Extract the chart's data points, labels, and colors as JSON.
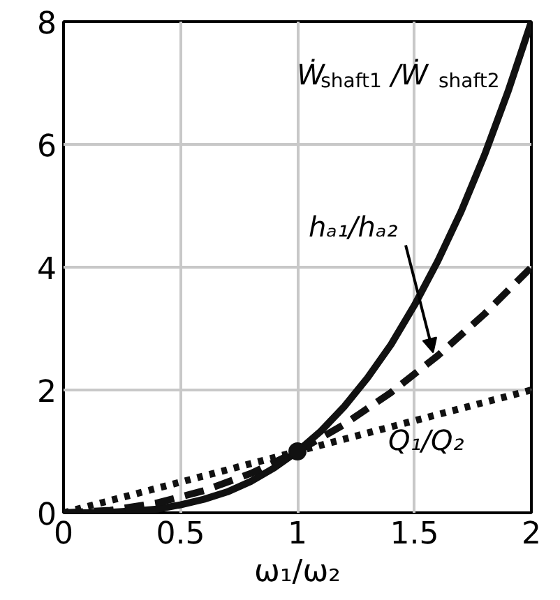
{
  "chart_data": {
    "type": "line",
    "xlabel": "ω₁/ω₂",
    "xlim": [
      0,
      2
    ],
    "ylim": [
      0,
      8
    ],
    "xticks": [
      0,
      0.5,
      1,
      1.5,
      2
    ],
    "yticks": [
      0,
      2,
      4,
      6,
      8
    ],
    "grid": true,
    "series": [
      {
        "name": "Ẇ$_{shaft1}$/Ẇ$_{shaft2}$",
        "color": "#111111",
        "line_style": "solid",
        "x": [
          0,
          0.1,
          0.2,
          0.3,
          0.4,
          0.5,
          0.6,
          0.7,
          0.8,
          0.9,
          1,
          1.1,
          1.2,
          1.3,
          1.4,
          1.5,
          1.6,
          1.7,
          1.8,
          1.9,
          2
        ],
        "values": [
          0,
          0,
          0.01,
          0.03,
          0.06,
          0.13,
          0.22,
          0.34,
          0.51,
          0.73,
          1,
          1.33,
          1.73,
          2.2,
          2.74,
          3.38,
          4.1,
          4.91,
          5.83,
          6.86,
          8
        ]
      },
      {
        "name": "hₐ₁/hₐ₂",
        "color": "#111111",
        "line_style": "dashed",
        "x": [
          0,
          0.2,
          0.4,
          0.6,
          0.8,
          1,
          1.2,
          1.4,
          1.6,
          1.8,
          2
        ],
        "values": [
          0,
          0.04,
          0.16,
          0.36,
          0.64,
          1,
          1.44,
          1.96,
          2.56,
          3.24,
          4
        ]
      },
      {
        "name": "Q₁/Q₂",
        "color": "#111111",
        "line_style": "dotted",
        "x": [
          0,
          2
        ],
        "values": [
          0,
          2
        ]
      },
      {
        "type": "scatter",
        "marker": "circle",
        "color": "#111111",
        "x": [
          1
        ],
        "values": [
          1
        ]
      }
    ]
  }
}
